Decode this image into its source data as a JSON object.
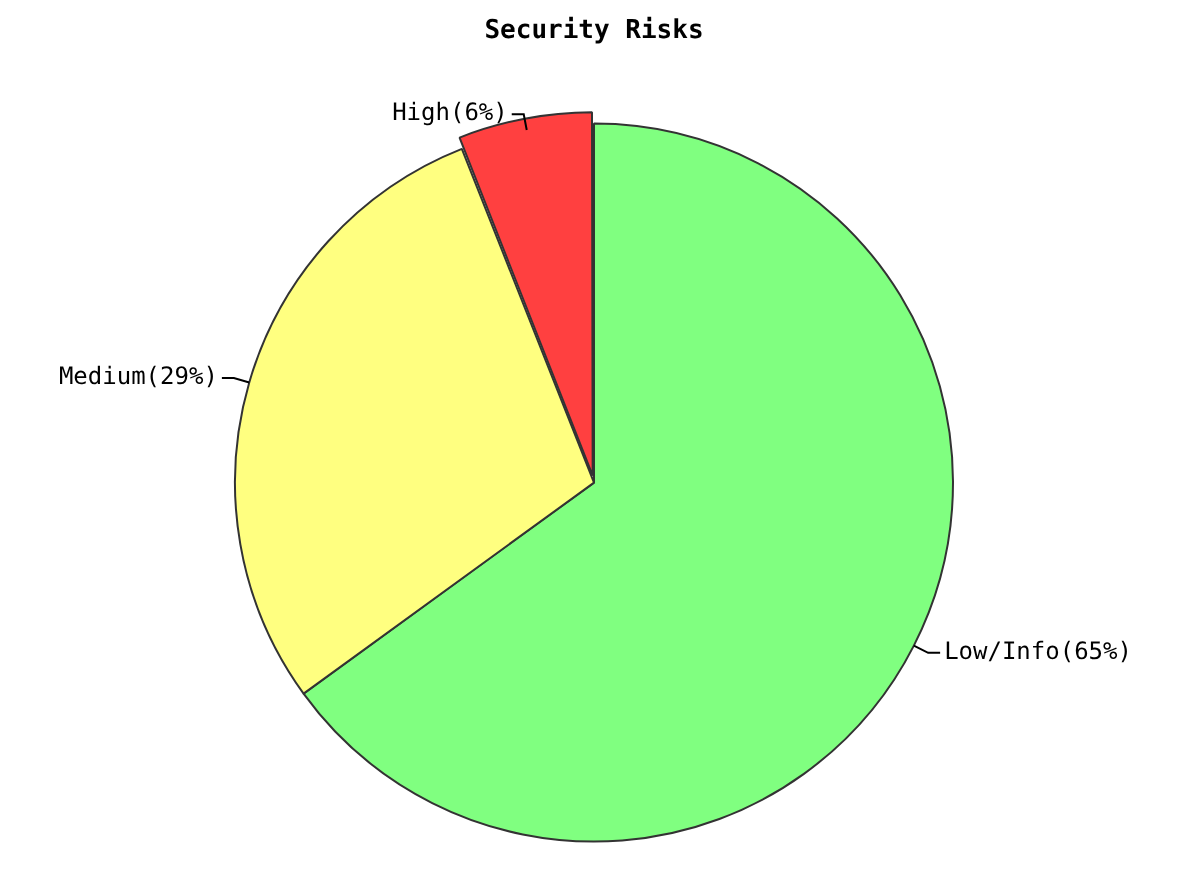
{
  "chart_data": {
    "type": "pie",
    "title": "Security Risks",
    "categories": [
      "Low/Info",
      "Medium",
      "High"
    ],
    "values": [
      65,
      29,
      6
    ],
    "colors": [
      "#80ff80",
      "#ffff80",
      "#ff4040"
    ],
    "value_labels": [
      "(65%)",
      "(29%)",
      "(6%)"
    ],
    "legend": false
  }
}
